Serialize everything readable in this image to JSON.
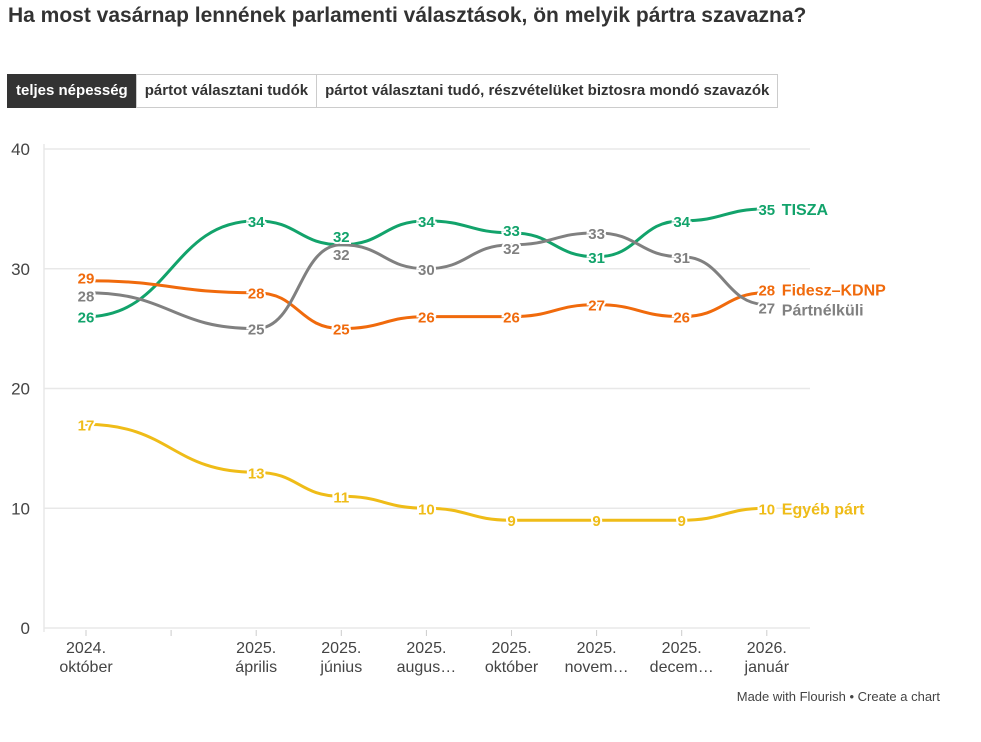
{
  "title": "Ha most vasárnap lennének parlamenti választások, ön melyik pártra szavazna?",
  "tabs": [
    {
      "label": "teljes népesség",
      "active": true
    },
    {
      "label": "pártot választani tudók"
    },
    {
      "label": "pártot választani tudó, részvételüket biztosra mondó szavazók"
    }
  ],
  "footer": {
    "made": "Made with Flourish",
    "sep": " • ",
    "create": "Create a chart"
  },
  "chart_data": {
    "type": "line",
    "categories": [
      [
        "2024.",
        "október"
      ],
      [
        "",
        ""
      ],
      [
        "2025.",
        "április"
      ],
      [
        "2025.",
        "június"
      ],
      [
        "2025.",
        "augus…"
      ],
      [
        "2025.",
        "október"
      ],
      [
        "2025.",
        "novem…"
      ],
      [
        "2025.",
        "decem…"
      ],
      [
        "2026.",
        "január"
      ]
    ],
    "ylim": [
      0,
      40
    ],
    "yticks": [
      0,
      10,
      20,
      30,
      40
    ],
    "grid": true,
    "legend": "direct labels at line ends",
    "series": [
      {
        "name": "TISZA",
        "color": "#12a36b",
        "values": [
          26,
          null,
          34,
          32,
          34,
          33,
          31,
          34,
          35
        ]
      },
      {
        "name": "Fidesz–KDNP",
        "color": "#f06a0c",
        "values": [
          29,
          null,
          28,
          25,
          26,
          26,
          27,
          26,
          28
        ]
      },
      {
        "name": "Pártnélküli",
        "color": "#808080",
        "values": [
          28,
          null,
          25,
          32,
          30,
          32,
          33,
          31,
          27
        ]
      },
      {
        "name": "Egyéb párt",
        "color": "#efbc18",
        "values": [
          17,
          null,
          13,
          11,
          10,
          9,
          9,
          9,
          10
        ]
      }
    ]
  }
}
